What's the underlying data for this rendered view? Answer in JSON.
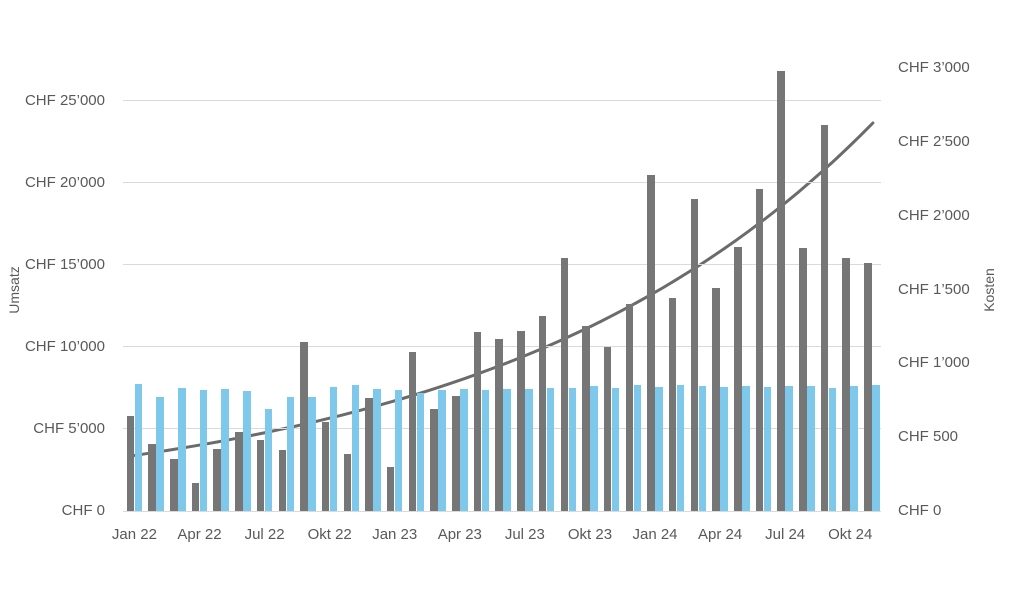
{
  "chart_data": {
    "type": "bar",
    "title": "",
    "grid": true,
    "legend": false,
    "categories": [
      "Jan 22",
      "Feb 22",
      "Mär 22",
      "Apr 22",
      "Mai 22",
      "Jun 22",
      "Jul 22",
      "Aug 22",
      "Sep 22",
      "Okt 22",
      "Nov 22",
      "Dez 22",
      "Jan 23",
      "Feb 23",
      "Mär 23",
      "Apr 23",
      "Mai 23",
      "Jun 23",
      "Jul 23",
      "Aug 23",
      "Sep 23",
      "Okt 23",
      "Nov 23",
      "Dez 23",
      "Jan 24",
      "Feb 24",
      "Mär 24",
      "Apr 24",
      "Mai 24",
      "Jun 24",
      "Jul 24",
      "Aug 24",
      "Sep 24",
      "Okt 24",
      "Nov 24"
    ],
    "x_tick_labels": [
      "Jan 22",
      "Apr 22",
      "Jul 22",
      "Okt 22",
      "Jan 23",
      "Apr 23",
      "Jul 23",
      "Okt 23",
      "Jan 24",
      "Apr 24",
      "Jul 24",
      "Okt 24"
    ],
    "series": [
      {
        "name": "Umsatz",
        "axis": "left",
        "color": "#767676",
        "values": [
          5800,
          4100,
          3200,
          1700,
          3800,
          4800,
          4300,
          3700,
          10300,
          5400,
          3500,
          6900,
          2700,
          9700,
          6200,
          7000,
          10900,
          10500,
          11000,
          11900,
          15400,
          11300,
          10000,
          12600,
          20500,
          13000,
          19000,
          13600,
          16100,
          19600,
          26800,
          16000,
          23500,
          15400,
          15100
        ]
      },
      {
        "name": "Kosten",
        "axis": "right",
        "color": "#7EC8EB",
        "values": [
          860,
          770,
          830,
          820,
          825,
          815,
          690,
          775,
          770,
          840,
          850,
          825,
          820,
          800,
          820,
          825,
          820,
          825,
          825,
          830,
          830,
          845,
          835,
          850,
          840,
          855,
          845,
          840,
          845,
          840,
          845,
          845,
          830,
          845,
          855
        ]
      }
    ],
    "trendline": {
      "of_series": "Umsatz",
      "shape": "exponential",
      "start_value": 3350,
      "end_value": 23650,
      "color": "#6B6B6B"
    },
    "left_axis": {
      "title": "Umsatz",
      "tick_labels": [
        "CHF 0",
        "CHF 5’000",
        "CHF 10’000",
        "CHF 15’000",
        "CHF 20’000",
        "CHF 25’000"
      ],
      "tick_values": [
        0,
        5000,
        10000,
        15000,
        20000,
        25000
      ],
      "scale_max": 27000
    },
    "right_axis": {
      "title": "Kosten",
      "tick_labels": [
        "CHF 0",
        "CHF 500",
        "CHF 1’000",
        "CHF 1’500",
        "CHF 2’000",
        "CHF 2’500",
        "CHF 3’000"
      ],
      "tick_values": [
        0,
        500,
        1000,
        1500,
        2000,
        2500,
        3000
      ],
      "scale_max": 3000
    },
    "colors": {
      "grid": "#dadada",
      "text": "#595959",
      "background": "#ffffff"
    }
  }
}
